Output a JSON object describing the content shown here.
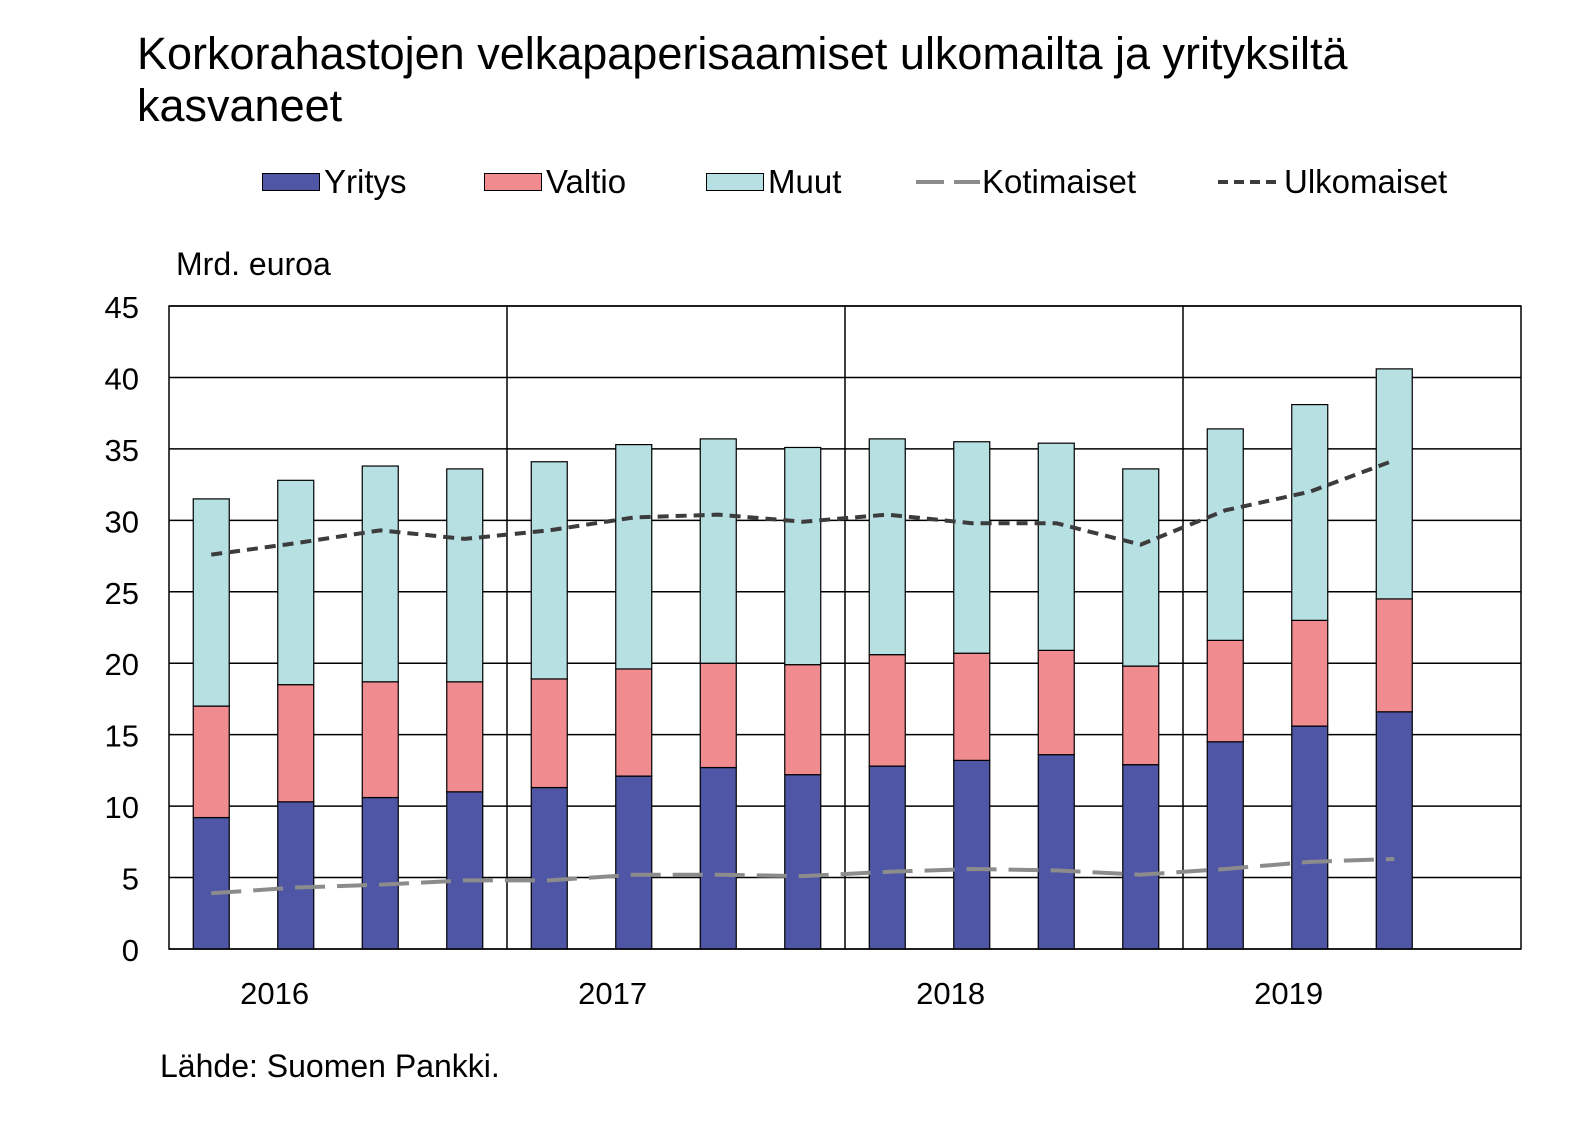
{
  "title": "Korkorahastojen velkapaperisaamiset ulkomailta ja yrityksiltä kasvaneet",
  "unit_label": "Mrd. euroa",
  "source": "Lähde: Suomen Pankki.",
  "colors": {
    "yritys": "#4f56a6",
    "valtio": "#f08b90",
    "muut": "#b7e0e3",
    "kotimaiset": "#8c8c8c",
    "ulkomaiset": "#3c3c3c"
  },
  "legend": [
    {
      "key": "yritys",
      "label": "Yritys",
      "kind": "bar"
    },
    {
      "key": "valtio",
      "label": "Valtio",
      "kind": "bar"
    },
    {
      "key": "muut",
      "label": "Muut",
      "kind": "bar"
    },
    {
      "key": "kotimaiset",
      "label": "Kotimaiset",
      "kind": "line"
    },
    {
      "key": "ulkomaiset",
      "label": "Ulkomaiset",
      "kind": "line"
    }
  ],
  "chart_data": {
    "type": "bar",
    "stacked": true,
    "year_labels": [
      "2016",
      "2017",
      "2018",
      "2019"
    ],
    "categories": [
      "2016Q1",
      "2016Q2",
      "2016Q3",
      "2016Q4",
      "2017Q1",
      "2017Q2",
      "2017Q3",
      "2017Q4",
      "2018Q1",
      "2018Q2",
      "2018Q3",
      "2018Q4",
      "2019Q1",
      "2019Q2",
      "2019Q3"
    ],
    "ylim": [
      0,
      45
    ],
    "yticks": [
      "0",
      "5",
      "10",
      "15",
      "20",
      "25",
      "30",
      "35",
      "40",
      "45"
    ],
    "grid": true,
    "legend_position": "top",
    "series": [
      {
        "name": "Yritys",
        "key": "yritys",
        "kind": "bar",
        "values": [
          9.2,
          10.3,
          10.6,
          11.0,
          11.3,
          12.1,
          12.7,
          12.2,
          12.8,
          13.2,
          13.6,
          12.9,
          14.5,
          15.6,
          16.6
        ]
      },
      {
        "name": "Valtio",
        "key": "valtio",
        "kind": "bar",
        "values": [
          7.8,
          8.2,
          8.1,
          7.7,
          7.6,
          7.5,
          7.3,
          7.7,
          7.8,
          7.5,
          7.3,
          6.9,
          7.1,
          7.4,
          7.9
        ]
      },
      {
        "name": "Muut",
        "key": "muut",
        "kind": "bar",
        "values": [
          14.5,
          14.3,
          15.1,
          14.9,
          15.2,
          15.7,
          15.7,
          15.2,
          15.1,
          14.8,
          14.5,
          13.8,
          14.8,
          15.1,
          16.1
        ]
      },
      {
        "name": "Kotimaiset",
        "key": "kotimaiset",
        "kind": "line",
        "dash": "long",
        "values": [
          3.9,
          4.3,
          4.5,
          4.8,
          4.8,
          5.2,
          5.2,
          5.1,
          5.4,
          5.6,
          5.5,
          5.2,
          5.6,
          6.1,
          6.3
        ]
      },
      {
        "name": "Ulkomaiset",
        "key": "ulkomaiset",
        "kind": "line",
        "dash": "short",
        "values": [
          27.6,
          28.4,
          29.3,
          28.7,
          29.3,
          30.2,
          30.4,
          29.9,
          30.4,
          29.8,
          29.8,
          28.3,
          30.7,
          32.0,
          34.2
        ]
      }
    ]
  }
}
